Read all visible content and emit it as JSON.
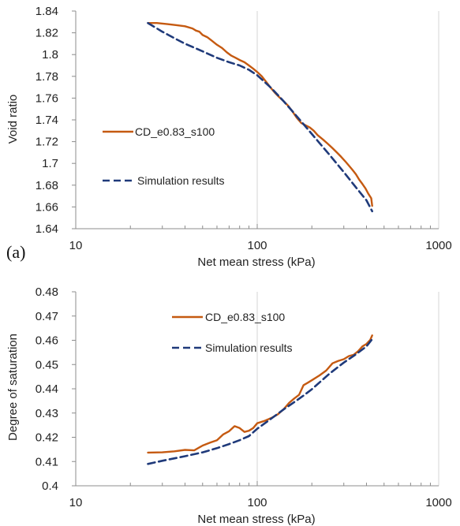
{
  "colors": {
    "experiment": "#c55a11",
    "simulation": "#1f3a7a",
    "grid": "#d4d4d4",
    "axis": "#8c8c8c"
  },
  "chart_data": [
    {
      "type": "line",
      "panel_label": "(a)",
      "xlabel": "Net mean stress (kPa)",
      "ylabel": "Void ratio",
      "x_scale": "log",
      "xlim": [
        10,
        1000
      ],
      "ylim": [
        1.64,
        1.84
      ],
      "x_ticks": [
        10,
        100,
        1000
      ],
      "x_tick_labels": [
        "10",
        "100",
        "1000"
      ],
      "y_ticks": [
        1.64,
        1.66,
        1.68,
        1.7,
        1.72,
        1.74,
        1.76,
        1.78,
        1.8,
        1.82,
        1.84
      ],
      "y_tick_labels": [
        "1.64",
        "1.66",
        "1.68",
        "1.7",
        "1.72",
        "1.74",
        "1.76",
        "1.78",
        "1.8",
        "1.82",
        "1.84"
      ],
      "grid": "major vertical lines at 10, 100, 1000",
      "legend_position": "center-left",
      "series": [
        {
          "name": "CD_e0.83_s100",
          "style": "solid",
          "color": "#c55a11",
          "x": [
            25,
            28,
            32,
            36,
            40,
            44,
            46,
            48,
            50,
            53,
            56,
            60,
            64,
            68,
            72,
            76,
            80,
            85,
            90,
            95,
            100,
            106,
            112,
            118,
            125,
            132,
            140,
            148,
            156,
            165,
            175,
            185,
            195,
            205,
            215,
            230,
            245,
            260,
            275,
            290,
            305,
            320,
            335,
            350,
            365,
            380,
            395,
            410,
            425,
            430
          ],
          "y": [
            1.829,
            1.829,
            1.828,
            1.827,
            1.826,
            1.824,
            1.822,
            1.821,
            1.818,
            1.816,
            1.813,
            1.809,
            1.806,
            1.802,
            1.799,
            1.797,
            1.795,
            1.793,
            1.79,
            1.787,
            1.784,
            1.78,
            1.775,
            1.77,
            1.765,
            1.761,
            1.757,
            1.753,
            1.748,
            1.742,
            1.737,
            1.735,
            1.733,
            1.73,
            1.726,
            1.722,
            1.718,
            1.714,
            1.71,
            1.706,
            1.702,
            1.698,
            1.694,
            1.69,
            1.685,
            1.681,
            1.677,
            1.672,
            1.668,
            1.661
          ]
        },
        {
          "name": "Simulation results",
          "style": "dashed",
          "color": "#1f3a7a",
          "x": [
            25,
            30,
            35,
            40,
            50,
            60,
            70,
            80,
            90,
            100,
            120,
            140,
            160,
            180,
            200,
            250,
            300,
            350,
            400,
            430
          ],
          "y": [
            1.829,
            1.821,
            1.815,
            1.81,
            1.803,
            1.797,
            1.793,
            1.79,
            1.786,
            1.781,
            1.769,
            1.757,
            1.746,
            1.736,
            1.727,
            1.708,
            1.692,
            1.678,
            1.666,
            1.656
          ]
        }
      ]
    },
    {
      "type": "line",
      "xlabel": "Net mean stress (kPa)",
      "ylabel": "Degree of saturation",
      "x_scale": "log",
      "xlim": [
        10,
        1000
      ],
      "ylim": [
        0.4,
        0.48
      ],
      "x_ticks": [
        10,
        100,
        1000
      ],
      "x_tick_labels": [
        "10",
        "100",
        "1000"
      ],
      "y_ticks": [
        0.4,
        0.41,
        0.42,
        0.43,
        0.44,
        0.45,
        0.46,
        0.47,
        0.48
      ],
      "y_tick_labels": [
        "0.4",
        "0.41",
        "0.42",
        "0.43",
        "0.44",
        "0.45",
        "0.46",
        "0.47",
        "0.48"
      ],
      "grid": "major vertical lines at 10, 100, 1000",
      "legend_position": "top-center",
      "series": [
        {
          "name": "CD_e0.83_s100",
          "style": "solid",
          "color": "#c55a11",
          "x": [
            25,
            30,
            35,
            40,
            45,
            50,
            55,
            60,
            65,
            70,
            75,
            80,
            85,
            90,
            95,
            100,
            110,
            120,
            130,
            140,
            150,
            160,
            170,
            175,
            180,
            190,
            200,
            220,
            240,
            260,
            280,
            300,
            320,
            340,
            360,
            380,
            400,
            420,
            430
          ],
          "y": [
            0.4137,
            0.4138,
            0.4142,
            0.4148,
            0.4146,
            0.4166,
            0.4178,
            0.4188,
            0.4212,
            0.4225,
            0.4246,
            0.4238,
            0.4222,
            0.4227,
            0.4238,
            0.4258,
            0.4268,
            0.428,
            0.4295,
            0.4316,
            0.4342,
            0.436,
            0.4375,
            0.4395,
            0.4415,
            0.4425,
            0.4435,
            0.4455,
            0.4475,
            0.4505,
            0.4515,
            0.4522,
            0.4535,
            0.454,
            0.4555,
            0.4575,
            0.4585,
            0.4602,
            0.462
          ]
        },
        {
          "name": "Simulation results",
          "style": "dashed",
          "color": "#1f3a7a",
          "x": [
            25,
            30,
            40,
            50,
            60,
            70,
            80,
            90,
            100,
            120,
            140,
            160,
            180,
            200,
            250,
            300,
            350,
            400,
            430
          ],
          "y": [
            0.409,
            0.4103,
            0.4122,
            0.4138,
            0.4155,
            0.4172,
            0.4188,
            0.4205,
            0.4235,
            0.4278,
            0.4315,
            0.4345,
            0.4372,
            0.4398,
            0.4462,
            0.4508,
            0.4542,
            0.4575,
            0.4605
          ]
        }
      ]
    }
  ]
}
